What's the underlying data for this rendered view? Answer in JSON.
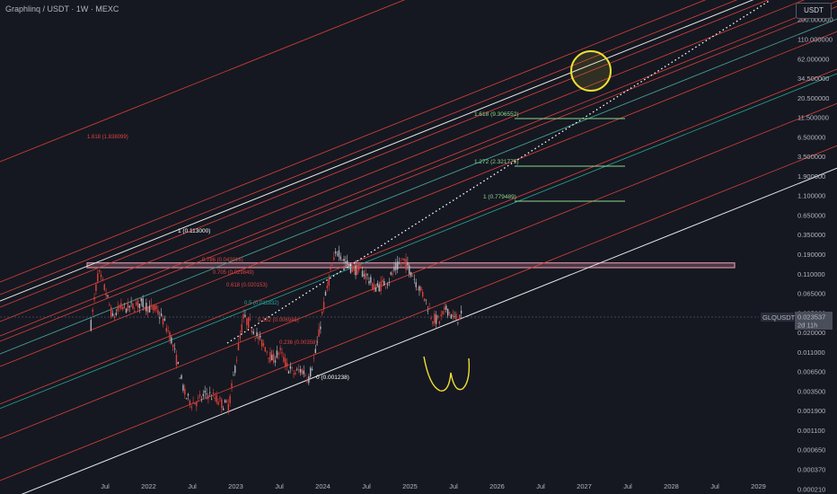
{
  "header": {
    "symbol_title": "Graphlinq / USDT · 1W · MEXC",
    "currency_button": "USDT"
  },
  "price_tag": {
    "symbol": "GLQUSDT",
    "price": "0.023537",
    "countdown": "2d 11h"
  },
  "colors": {
    "background": "#151821",
    "candle_up": "#b2b5be",
    "candle_down": "#e0413b",
    "channel_white": "#e6e6e6",
    "channel_red": "#e0413b",
    "channel_teal": "#26a69a",
    "target_green": "#8bd88b",
    "circle_yellow": "#f0e030",
    "resistance_zone": "#d98ea6"
  },
  "chart_data": {
    "type": "candlestick",
    "y_scale": "log",
    "y_ticks": [
      "200.000000",
      "110.000000",
      "62.000000",
      "34.500000",
      "20.500000",
      "11.500000",
      "6.500000",
      "3.500000",
      "1.900000",
      "1.100000",
      "0.650000",
      "0.350000",
      "0.190000",
      "0.110000",
      "0.065000",
      "0.035000",
      "0.020000",
      "0.011000",
      "0.006500",
      "0.003500",
      "0.001900",
      "0.001100",
      "0.000650",
      "0.000370",
      "0.000210"
    ],
    "x_ticks": [
      "Jul",
      "2022",
      "Jul",
      "2023",
      "Jul",
      "2024",
      "Jul",
      "2025",
      "Jul",
      "2026",
      "Jul",
      "2027",
      "Jul",
      "2028",
      "Jul",
      "2029"
    ],
    "channel_labels": [
      {
        "text": "1.618 (1.838099)",
        "color": "red"
      },
      {
        "text": "1 (0.113000)",
        "color": "white"
      },
      {
        "text": "0.786 (0.043016)",
        "color": "red"
      },
      {
        "text": "0.705 (0.029849)",
        "color": "red"
      },
      {
        "text": "0.618 (0.020153)",
        "color": "red"
      },
      {
        "text": "0.5 (0.011832)",
        "color": "teal"
      },
      {
        "text": "0.382 (0.006946)",
        "color": "red"
      },
      {
        "text": "0.236 (0.00358)",
        "color": "red"
      },
      {
        "text": "0 (0.001238)",
        "color": "white"
      }
    ],
    "targets": [
      {
        "label": "1.618 (9.306552)",
        "value": 9.306552
      },
      {
        "label": "1.272 (2.321775)",
        "value": 2.321775
      },
      {
        "label": "1 (0.779489)",
        "value": 0.779489
      }
    ],
    "resistance_zone": [
      0.102,
      0.118
    ],
    "price_path": [
      [
        "2021-05",
        0.018
      ],
      [
        "2021-06",
        0.09
      ],
      [
        "2021-07",
        0.05
      ],
      [
        "2021-08",
        0.022
      ],
      [
        "2021-09",
        0.03
      ],
      [
        "2021-10",
        0.03
      ],
      [
        "2021-11",
        0.032
      ],
      [
        "2021-12",
        0.035
      ],
      [
        "2022-01",
        0.03
      ],
      [
        "2022-02",
        0.028
      ],
      [
        "2022-03",
        0.02
      ],
      [
        "2022-04",
        0.012
      ],
      [
        "2022-05",
        0.005
      ],
      [
        "2022-06",
        0.002
      ],
      [
        "2022-07",
        0.0016
      ],
      [
        "2022-08",
        0.0018
      ],
      [
        "2022-09",
        0.0022
      ],
      [
        "2022-10",
        0.0019
      ],
      [
        "2022-11",
        0.0016
      ],
      [
        "2022-12",
        0.0015
      ],
      [
        "2023-01",
        0.006
      ],
      [
        "2023-02",
        0.022
      ],
      [
        "2023-03",
        0.018
      ],
      [
        "2023-04",
        0.012
      ],
      [
        "2023-05",
        0.009
      ],
      [
        "2023-06",
        0.006
      ],
      [
        "2023-07",
        0.008
      ],
      [
        "2023-08",
        0.005
      ],
      [
        "2023-09",
        0.004
      ],
      [
        "2023-10",
        0.0045
      ],
      [
        "2023-11",
        0.0035
      ],
      [
        "2023-12",
        0.008
      ],
      [
        "2024-01",
        0.03
      ],
      [
        "2024-02",
        0.09
      ],
      [
        "2024-03",
        0.18
      ],
      [
        "2024-04",
        0.12
      ],
      [
        "2024-05",
        0.1
      ],
      [
        "2024-06",
        0.095
      ],
      [
        "2024-07",
        0.08
      ],
      [
        "2024-08",
        0.055
      ],
      [
        "2024-09",
        0.06
      ],
      [
        "2024-10",
        0.07
      ],
      [
        "2024-11",
        0.1
      ],
      [
        "2024-12",
        0.13
      ],
      [
        "2025-01",
        0.095
      ],
      [
        "2025-02",
        0.06
      ],
      [
        "2025-03",
        0.04
      ],
      [
        "2025-04",
        0.022
      ],
      [
        "2025-05",
        0.02
      ],
      [
        "2025-06",
        0.03
      ],
      [
        "2025-07",
        0.021
      ],
      [
        "2025-08",
        0.0235
      ]
    ],
    "grid": false
  }
}
